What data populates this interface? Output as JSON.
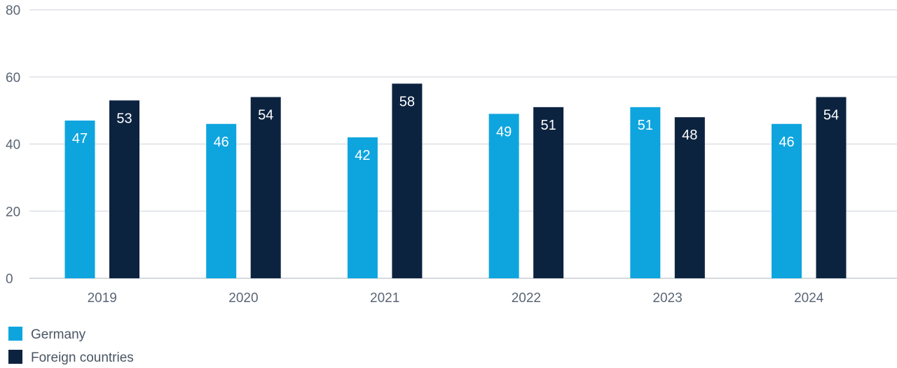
{
  "chart_data": {
    "type": "bar",
    "title": "",
    "xlabel": "",
    "ylabel": "",
    "categories": [
      "2019",
      "2020",
      "2021",
      "2022",
      "2023",
      "2024"
    ],
    "series": [
      {
        "name": "Germany",
        "color": "#0ea5df",
        "values": [
          47,
          46,
          42,
          49,
          51,
          46
        ],
        "labels": [
          "47",
          "46",
          "42",
          "49",
          "51",
          "46"
        ]
      },
      {
        "name": "Foreign countries",
        "color": "#0c2340",
        "values": [
          53,
          54,
          58,
          51,
          48,
          54
        ],
        "labels": [
          "53",
          "54",
          "58",
          "51",
          "48",
          "54"
        ]
      }
    ],
    "ylim": [
      0,
      80
    ],
    "yticks": [
      0,
      20,
      40,
      60,
      80
    ],
    "ytick_labels": [
      "0",
      "20",
      "40",
      "60",
      "80"
    ],
    "grid": true,
    "legend_position": "bottom-left"
  }
}
